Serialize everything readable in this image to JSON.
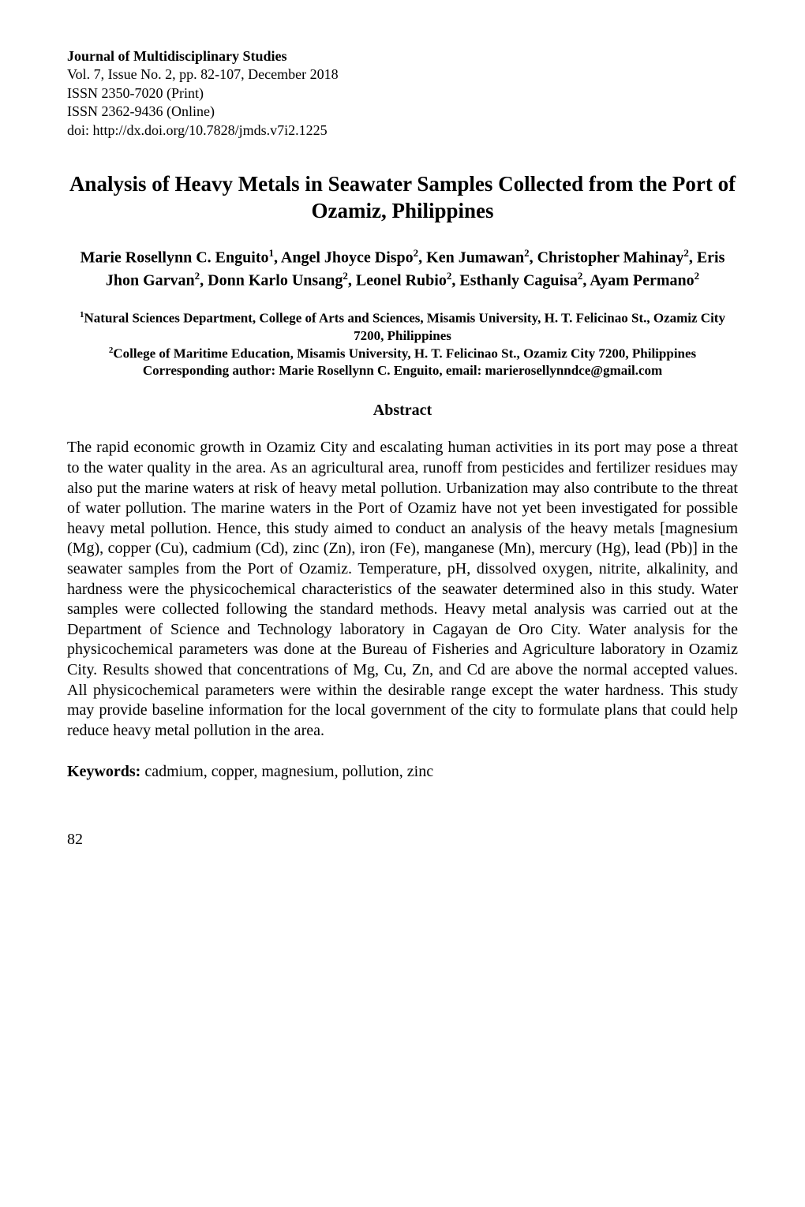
{
  "journal": {
    "title": "Journal of Multidisciplinary Studies",
    "volume_line": "Vol. 7, Issue No. 2, pp. 82-107, December 2018",
    "issn_print": "ISSN 2350-7020 (Print)",
    "issn_online": "ISSN 2362-9436 (Online)",
    "doi": "doi: http://dx.doi.org/10.7828/jmds.v7i2.1225"
  },
  "paper": {
    "title": "Analysis of Heavy Metals in Seawater Samples Collected from the Port of Ozamiz, Philippines",
    "authors_html": "Marie Rosellynn C. Enguito<sup>1</sup>, Angel Jhoyce Dispo<sup>2</sup>, Ken Jumawan<sup>2</sup>, Christopher Mahinay<sup>2</sup>, Eris Jhon Garvan<sup>2</sup>, Donn Karlo Unsang<sup>2</sup>, Leonel Rubio<sup>2</sup>, Esthanly Caguisa<sup>2</sup>, Ayam Permano<sup>2</sup>",
    "affiliations_html": "<sup>1</sup>Natural Sciences Department, College of Arts and Sciences, Misamis University, H. T. Felicinao St., Ozamiz City 7200, Philippines<br><sup>2</sup>College of Maritime Education, Misamis University, H. T. Felicinao St., Ozamiz City 7200, Philippines<br>Corresponding author: Marie Rosellynn C. Enguito, email: marierosellynndce@gmail.com",
    "abstract_heading": "Abstract",
    "abstract_body": "The rapid economic growth in Ozamiz City and escalating human activities in its port may pose a threat to the water quality in the area.  As an agricultural area, runoff from pesticides and fertilizer residues may also put the marine waters at risk of heavy metal pollution. Urbanization may also contribute to the threat of water pollution. The marine waters in the Port of Ozamiz have not yet been investigated for possible heavy metal pollution. Hence, this study aimed to conduct an analysis of the heavy metals [magnesium (Mg), copper (Cu), cadmium (Cd), zinc (Zn), iron (Fe), manganese (Mn), mercury (Hg), lead (Pb)] in the seawater samples from the Port of Ozamiz. Temperature, pH, dissolved oxygen, nitrite, alkalinity, and hardness were the physicochemical characteristics of the seawater determined also in this study. Water samples were collected following the standard methods. Heavy metal analysis was carried out at the Department of Science and Technology laboratory in Cagayan de Oro City.  Water analysis for the physicochemical parameters was done at the Bureau of Fisheries and Agriculture laboratory in Ozamiz City. Results showed that concentrations of Mg, Cu, Zn, and Cd are above the normal accepted values. All physicochemical parameters were within the desirable range except the water hardness. This study may provide baseline information for the local government of the city to formulate plans that could help reduce heavy metal pollution in the area.",
    "keywords_label": "Keywords:",
    "keywords_text": " cadmium, copper, magnesium, pollution, zinc"
  },
  "page_number": "82"
}
